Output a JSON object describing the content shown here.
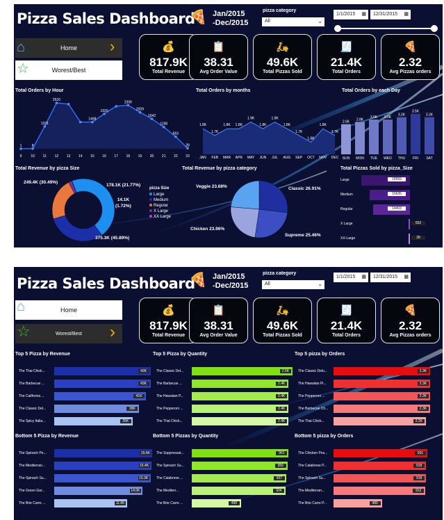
{
  "dashboard1": {
    "title": "Pizza Sales Dashboard",
    "date_line1": "Jan/2015",
    "date_line2": "-Dec/2015",
    "category_label": "pizza category",
    "category_value": "All",
    "date_start": "1/1/2015",
    "date_end": "12/31/2015",
    "nav_home": "Home",
    "nav_worst": "Worest/Best",
    "kpis": [
      {
        "value": "817.9K",
        "label": "Total Revenue",
        "icon": "money-bag-icon"
      },
      {
        "value": "38.31",
        "label": "Avg Order Value",
        "icon": "clipboard-icon"
      },
      {
        "value": "49.6K",
        "label": "Total Pizzas Sold",
        "icon": "delivery-icon"
      },
      {
        "value": "21.4K",
        "label": "Total Orders",
        "icon": "receipt-icon"
      },
      {
        "value": "2.32",
        "label": "Avg Pizzas orders",
        "icon": "pizza-slice-icon"
      }
    ],
    "hour_chart": {
      "title": "Total Orders by Hour",
      "x": [
        "9",
        "10",
        "11",
        "12",
        "13",
        "14",
        "15",
        "16",
        "17",
        "18",
        "19",
        "20",
        "21",
        "22",
        "23"
      ],
      "values": [
        1,
        8,
        1231,
        2520,
        2455,
        1472,
        1468,
        1920,
        2336,
        2399,
        2009,
        1642,
        1198,
        663,
        28
      ],
      "labels": [
        "1",
        "8",
        "1231",
        "2520",
        "",
        "",
        "1468",
        "1920",
        "",
        "2399",
        "2009",
        "1642",
        "1198",
        "663",
        "28"
      ]
    },
    "month_chart": {
      "title": "Total Orders by months",
      "x": [
        "JAN",
        "FEB",
        "MAR",
        "APR",
        "MAY",
        "JUN",
        "JUL",
        "AUG",
        "SEP",
        "OCT",
        "NOV",
        "DEC"
      ],
      "values": [
        1.8,
        1.7,
        1.8,
        1.8,
        1.9,
        1.8,
        1.9,
        1.8,
        1.7,
        1.6,
        1.8,
        1.7
      ],
      "labels": [
        "1.8K",
        "1.7K",
        "1.8K",
        "1.8K",
        "1.9K",
        "1.8K",
        "1.9K",
        "1.8K",
        "1.7K",
        "1.6K",
        "1.8K",
        "1.7K"
      ]
    },
    "day_chart": {
      "title": "Total Orders by each Day",
      "x": [
        "SUN",
        "MON",
        "TUE",
        "WED",
        "THU",
        "FRI",
        "SAT"
      ],
      "values": [
        2.6,
        2.8,
        3.0,
        3.0,
        3.2,
        3.5,
        3.2
      ],
      "labels": [
        "2.6K",
        "2.8K",
        "3.0K",
        "3.0K",
        "3.2K",
        "3.5K",
        "3.2K"
      ]
    },
    "size_pie": {
      "title": "Total Revenue by pizza Size",
      "legend_title": "pizza Size",
      "slices": [
        {
          "name": "Large",
          "value": 375.3,
          "label": "375.3K (45.89%)",
          "color": "#1d8ff0"
        },
        {
          "name": "Medium",
          "value": 249.4,
          "label": "249.4K (30.49%)",
          "color": "#1a2fa8"
        },
        {
          "name": "Regular",
          "value": 178.1,
          "label": "178.1K (21.77%)",
          "color": "#e8783b"
        },
        {
          "name": "X Large",
          "value": 14.1,
          "label": "14.1K (1.72%)",
          "color": "#7b2e9c"
        },
        {
          "name": "XX Large",
          "value": 1.0,
          "label": "",
          "color": "#c43ad6"
        }
      ]
    },
    "category_pie": {
      "title": "Total Revenue by pizza category",
      "slices": [
        {
          "name": "Classic",
          "value": 26.91,
          "label": "Classic 26.91%",
          "color": "#1f2fa0"
        },
        {
          "name": "Supreme",
          "value": 25.46,
          "label": "Supreme 25.46%",
          "color": "#3b4ec4"
        },
        {
          "name": "Chicken",
          "value": 23.96,
          "label": "Chicken 23.96%",
          "color": "#9aa4dd"
        },
        {
          "name": "Veggie",
          "value": 23.68,
          "label": "Veggie 23.68%",
          "color": "#5aa3f0"
        }
      ]
    },
    "size_bars": {
      "title": "Total Pizzas Sold by pizza_Size",
      "rows": [
        {
          "name": "Large",
          "value": 18956,
          "label": "18956"
        },
        {
          "name": "Medium",
          "value": 15635,
          "label": "15635"
        },
        {
          "name": "Regular",
          "value": 14403,
          "label": "14403"
        },
        {
          "name": "X Large",
          "value": 552,
          "label": "552"
        },
        {
          "name": "XX-Large",
          "value": 28,
          "label": "28"
        }
      ]
    }
  },
  "dashboard2": {
    "title": "Pizza Sales Dashboard",
    "date_line1": "Jan/2015",
    "date_line2": "-Dec/2015",
    "category_label": "pizza category",
    "category_value": "All",
    "date_start": "1/1/2015",
    "date_end": "12/31/2015",
    "nav_home": "Home",
    "nav_worst": "Worest/Best",
    "kpis": [
      {
        "value": "817.9K",
        "label": "Total Revenue",
        "icon": "money-bag-icon"
      },
      {
        "value": "38.31",
        "label": "Avg Order Value",
        "icon": "clipboard-icon"
      },
      {
        "value": "49.6K",
        "label": "Total Pizzas Sold",
        "icon": "delivery-icon"
      },
      {
        "value": "21.4K",
        "label": "Total Orders",
        "icon": "receipt-icon"
      },
      {
        "value": "2.32",
        "label": "Avg Pizzas orders",
        "icon": "pizza-slice-icon"
      }
    ],
    "panels": [
      {
        "title": "Top 5 Pizza by Revenue",
        "colors": [
          "#1d2fa8",
          "#2a40c0",
          "#3b55d0",
          "#6f8ce0",
          "#a9c3f2"
        ],
        "max": 45,
        "rows": [
          {
            "name": "The Thai Chick...",
            "value": 43,
            "label": "43K"
          },
          {
            "name": "The Barbecue ...",
            "value": 43,
            "label": "43K"
          },
          {
            "name": "The California ...",
            "value": 41,
            "label": "41K"
          },
          {
            "name": "The Classic Del...",
            "value": 38,
            "label": "38K"
          },
          {
            "name": "The Spicy Italia...",
            "value": 35,
            "label": "35K"
          }
        ]
      },
      {
        "title": "Top 5 Pizza by Quantity",
        "colors": [
          "#7fe012",
          "#8fe62a",
          "#a4ec4e",
          "#b9f276",
          "#d4f8a6"
        ],
        "max": 2.5,
        "rows": [
          {
            "name": "The Classic Del...",
            "value": 2.5,
            "label": "2.5K"
          },
          {
            "name": "The Barbecue ...",
            "value": 2.4,
            "label": "2.4K"
          },
          {
            "name": "The Hawaiian P...",
            "value": 2.4,
            "label": "2.4K"
          },
          {
            "name": "The Pepperoni ...",
            "value": 2.4,
            "label": "2.4K"
          },
          {
            "name": "The Thai Chick...",
            "value": 2.4,
            "label": "2.4K"
          }
        ]
      },
      {
        "title": "Top 5 pizza by Orders",
        "colors": [
          "#e80d0d",
          "#ee3030",
          "#f25555",
          "#f67a7a",
          "#f9a0a0"
        ],
        "max": 2.4,
        "rows": [
          {
            "name": "The Classic Delu...",
            "value": 2.3,
            "label": "2.3K"
          },
          {
            "name": "The Hawaiian Pi...",
            "value": 2.3,
            "label": "2.3K"
          },
          {
            "name": "The Pepperoni ...",
            "value": 2.3,
            "label": "2.3K"
          },
          {
            "name": "The Barbecue Ch...",
            "value": 2.3,
            "label": "2.3K"
          },
          {
            "name": "The Thai Chick...",
            "value": 2.2,
            "label": "2.2K"
          }
        ]
      },
      {
        "title": "Bottom 5 Pizza by Revenue",
        "colors": [
          "#1d2fa8",
          "#2a40c0",
          "#3b55d0",
          "#6f8ce0",
          "#a9c3f2"
        ],
        "max": 16,
        "rows": [
          {
            "name": "The Spinach Pe...",
            "value": 15.6,
            "label": "15.6K"
          },
          {
            "name": "The Mediterran...",
            "value": 15.4,
            "label": "15.4K"
          },
          {
            "name": "The Spinach Su...",
            "value": 15.3,
            "label": "15.3K"
          },
          {
            "name": "The Green Gar...",
            "value": 14.0,
            "label": "14.0K"
          },
          {
            "name": "The Brie Carre ...",
            "value": 11.6,
            "label": "11.6K"
          }
        ]
      },
      {
        "title": "Bottom 5 Pizzas by Quantity",
        "colors": [
          "#7fe012",
          "#8fe62a",
          "#a4ec4e",
          "#b9f276",
          "#d4f8a6"
        ],
        "max": 1000,
        "rows": [
          {
            "name": "The Soppressat...",
            "value": 961,
            "label": "961"
          },
          {
            "name": "The Spinach Su...",
            "value": 950,
            "label": "950"
          },
          {
            "name": "The Calabrese ...",
            "value": 937,
            "label": "937"
          },
          {
            "name": "The Mediterr...",
            "value": 934,
            "label": "934"
          },
          {
            "name": "The Brie Carre ...",
            "value": 490,
            "label": "490"
          }
        ]
      },
      {
        "title": "Bottom 5 pizza by Orders",
        "colors": [
          "#e80d0d",
          "#ee3030",
          "#f25555",
          "#f67a7a",
          "#f9a0a0"
        ],
        "max": 1000,
        "rows": [
          {
            "name": "The Chicken Pes...",
            "value": 931,
            "label": "931"
          },
          {
            "name": "The Calabrese P...",
            "value": 918,
            "label": "918"
          },
          {
            "name": "The Spinach Su...",
            "value": 918,
            "label": "918"
          },
          {
            "name": "The Mediterran...",
            "value": 912,
            "label": "912"
          },
          {
            "name": "The Brie Carre P...",
            "value": 480,
            "label": "480"
          }
        ]
      }
    ]
  }
}
